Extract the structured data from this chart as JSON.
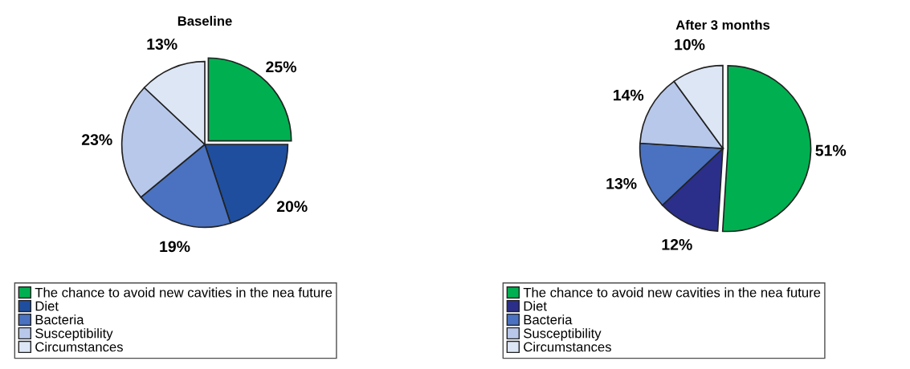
{
  "chart_data": [
    {
      "type": "pie",
      "title": "Baseline",
      "categories": [
        "The chance to avoid new cavities in the nea future",
        "Diet",
        "Bacteria",
        "Susceptibility",
        "Circumstances"
      ],
      "values": [
        25,
        20,
        19,
        23,
        13
      ],
      "colors": [
        "#00b050",
        "#1f4e9e",
        "#4a72c0",
        "#b8c8ea",
        "#dde6f5"
      ],
      "value_labels": [
        "25%",
        "20%",
        "19%",
        "23%",
        "13%"
      ],
      "legend": "bottom"
    },
    {
      "type": "pie",
      "title": "After 3 months",
      "categories": [
        "The chance to avoid new cavities in the nea future",
        "Diet",
        "Bacteria",
        "Susceptibility",
        "Circumstances"
      ],
      "values": [
        51,
        12,
        13,
        14,
        10
      ],
      "colors": [
        "#00b050",
        "#2b2f8a",
        "#4a72c0",
        "#b8c8ea",
        "#dde6f5"
      ],
      "value_labels": [
        "51%",
        "12%",
        "13%",
        "14%",
        "10%"
      ],
      "legend": "bottom"
    }
  ]
}
